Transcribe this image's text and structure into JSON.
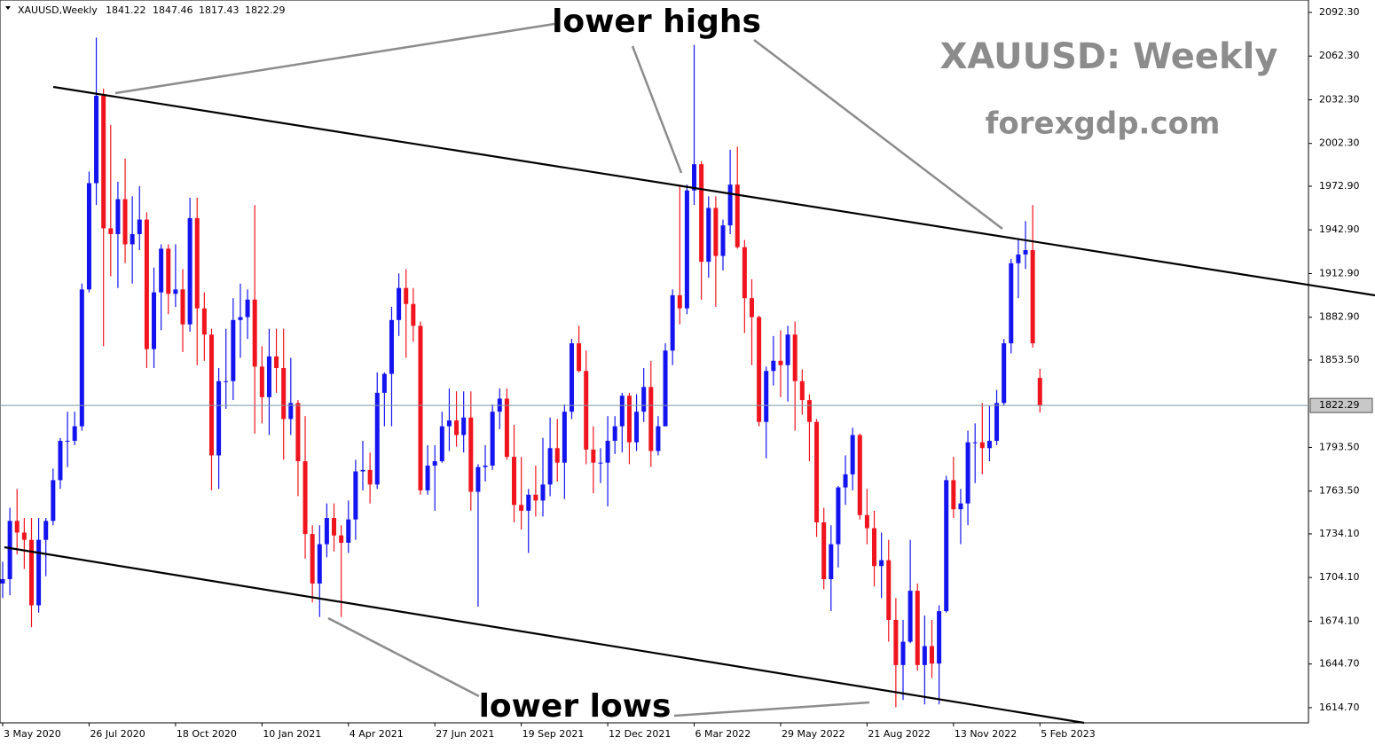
{
  "chart_data": {
    "type": "candlestick",
    "symbol_label": "XAUUSD,Weekly",
    "watermark": "XAUUSD: Weekly",
    "source": "forexgdp.com",
    "annotations": [
      "lower highs",
      "lower lows"
    ],
    "up_color": "#1414f0",
    "down_color": "#f0141e",
    "categories": [
      "3 May 2020",
      null,
      null,
      null,
      null,
      null,
      null,
      null,
      null,
      null,
      null,
      null,
      "26 Jul 2020",
      null,
      null,
      null,
      null,
      null,
      null,
      null,
      null,
      null,
      null,
      null,
      "18 Oct 2020",
      null,
      null,
      null,
      null,
      null,
      null,
      null,
      null,
      null,
      null,
      null,
      "10 Jan 2021",
      null,
      null,
      null,
      null,
      null,
      null,
      null,
      null,
      null,
      null,
      null,
      "4 Apr 2021",
      null,
      null,
      null,
      null,
      null,
      null,
      null,
      null,
      null,
      null,
      null,
      "27 Jun 2021",
      null,
      null,
      null,
      null,
      null,
      null,
      null,
      null,
      null,
      null,
      null,
      "19 Sep 2021",
      null,
      null,
      null,
      null,
      null,
      null,
      null,
      null,
      null,
      null,
      null,
      "12 Dec 2021",
      null,
      null,
      null,
      null,
      null,
      null,
      null,
      null,
      null,
      null,
      null,
      "6 Mar 2022",
      null,
      null,
      null,
      null,
      null,
      null,
      null,
      null,
      null,
      null,
      null,
      "29 May 2022",
      null,
      null,
      null,
      null,
      null,
      null,
      null,
      null,
      null,
      null,
      null,
      "21 Aug 2022",
      null,
      null,
      null,
      null,
      null,
      null,
      null,
      null,
      null,
      null,
      null,
      "13 Nov 2022",
      null,
      null,
      null,
      null,
      null,
      null,
      null,
      null,
      null,
      null,
      null,
      "5 Feb 2023"
    ],
    "open": [
      1700,
      1703,
      1743,
      1735,
      1730,
      1685,
      1730,
      1743,
      1771,
      1798,
      1798,
      1808,
      1902,
      1975,
      2035,
      1944,
      1940,
      1964,
      1933,
      1940,
      1950,
      1861,
      1900,
      1930,
      1899,
      1902,
      1878,
      1951,
      1889,
      1871,
      1788,
      1839,
      1839,
      1881,
      1883,
      1895,
      1849,
      1828,
      1856,
      1848,
      1813,
      1824,
      1784,
      1734,
      1700,
      1727,
      1745,
      1733,
      1728,
      1744,
      1777,
      1778,
      1768,
      1831,
      1844,
      1881,
      1903,
      1892,
      1877,
      1764,
      1781,
      1784,
      1808,
      1812,
      1802,
      1814,
      1763,
      1780,
      1781,
      1818,
      1827,
      1787,
      1754,
      1750,
      1761,
      1757,
      1768,
      1793,
      1783,
      1818,
      1865,
      1846,
      1792,
      1783,
      1783,
      1798,
      1808,
      1829,
      1797,
      1818,
      1835,
      1791,
      1808,
      1860,
      1898,
      1889,
      1970,
      1988,
      1921,
      1958,
      1925,
      1946,
      1974,
      1931,
      1896,
      1883,
      1811,
      1846,
      1853,
      1850,
      1871,
      1839,
      1826,
      1811,
      1742,
      1703,
      1727,
      1766,
      1775,
      1802,
      1747,
      1738,
      1712,
      1716,
      1675,
      1644,
      1660,
      1695,
      1644,
      1657,
      1645,
      1681,
      1771,
      1751,
      1755,
      1797,
      1797,
      1793,
      1798,
      1824,
      1865,
      1920,
      1926,
      1929,
      1841.22
    ],
    "high": [
      1715,
      1752,
      1765,
      1745,
      1745,
      1745,
      1745,
      1779,
      1800,
      1818,
      1818,
      1906,
      1983,
      2075,
      2040,
      2015,
      1976,
      1992,
      1966,
      1973,
      1955,
      1917,
      1933,
      1933,
      1933,
      1916,
      1965,
      1965,
      1900,
      1875,
      1848,
      1875,
      1896,
      1906,
      1902,
      1960,
      1863,
      1875,
      1875,
      1875,
      1855,
      1826,
      1815,
      1740,
      1740,
      1755,
      1755,
      1740,
      1757,
      1785,
      1798,
      1790,
      1845,
      1845,
      1890,
      1913,
      1916,
      1903,
      1880,
      1795,
      1795,
      1818,
      1834,
      1832,
      1832,
      1832,
      1782,
      1795,
      1823,
      1834,
      1834,
      1809,
      1787,
      1765,
      1781,
      1800,
      1814,
      1813,
      1823,
      1868,
      1877,
      1860,
      1808,
      1793,
      1815,
      1815,
      1831,
      1831,
      1830,
      1848,
      1853,
      1815,
      1865,
      1902,
      1974,
      1974,
      2070,
      1990,
      1966,
      1966,
      1950,
      1998,
      2000,
      1936,
      1909,
      1884,
      1849,
      1870,
      1874,
      1877,
      1880,
      1847,
      1830,
      1813,
      1752,
      1740,
      1767,
      1788,
      1807,
      1803,
      1765,
      1750,
      1735,
      1730,
      1690,
      1675,
      1730,
      1700,
      1678,
      1675,
      1685,
      1774,
      1787,
      1765,
      1805,
      1810,
      1824,
      1822,
      1833,
      1868,
      1923,
      1937,
      1949,
      1960,
      1847.46
    ],
    "low": [
      1690,
      1692,
      1720,
      1710,
      1670,
      1680,
      1705,
      1740,
      1765,
      1780,
      1795,
      1805,
      1900,
      1960,
      1863,
      1911,
      1903,
      1920,
      1906,
      1929,
      1848,
      1848,
      1874,
      1885,
      1890,
      1859,
      1873,
      1850,
      1853,
      1764,
      1765,
      1820,
      1826,
      1855,
      1868,
      1803,
      1810,
      1802,
      1831,
      1785,
      1802,
      1760,
      1717,
      1687,
      1677,
      1718,
      1722,
      1677,
      1721,
      1730,
      1764,
      1755,
      1765,
      1808,
      1808,
      1870,
      1855,
      1866,
      1761,
      1761,
      1750,
      1783,
      1791,
      1794,
      1790,
      1750,
      1684,
      1770,
      1778,
      1806,
      1785,
      1742,
      1737,
      1721,
      1746,
      1746,
      1760,
      1770,
      1758,
      1813,
      1845,
      1782,
      1762,
      1769,
      1753,
      1789,
      1790,
      1782,
      1791,
      1811,
      1780,
      1788,
      1808,
      1850,
      1878,
      1885,
      1960,
      1895,
      1910,
      1890,
      1915,
      1940,
      1930,
      1872,
      1850,
      1808,
      1786,
      1836,
      1828,
      1825,
      1805,
      1816,
      1784,
      1732,
      1696,
      1681,
      1711,
      1754,
      1764,
      1744,
      1727,
      1698,
      1690,
      1660,
      1615,
      1620,
      1659,
      1640,
      1617,
      1635,
      1617,
      1680,
      1745,
      1727,
      1740,
      1769,
      1775,
      1784,
      1795,
      1822,
      1858,
      1896,
      1916,
      1862,
      1817.43
    ],
    "close": [
      1703,
      1743,
      1735,
      1730,
      1685,
      1730,
      1743,
      1771,
      1798,
      1798,
      1808,
      1902,
      1975,
      2035,
      1944,
      1940,
      1964,
      1933,
      1940,
      1950,
      1861,
      1900,
      1930,
      1899,
      1902,
      1878,
      1951,
      1889,
      1871,
      1788,
      1839,
      1839,
      1881,
      1883,
      1895,
      1849,
      1828,
      1856,
      1848,
      1813,
      1824,
      1784,
      1734,
      1700,
      1727,
      1745,
      1733,
      1728,
      1744,
      1777,
      1778,
      1768,
      1831,
      1844,
      1881,
      1903,
      1892,
      1877,
      1764,
      1781,
      1784,
      1808,
      1812,
      1802,
      1814,
      1763,
      1780,
      1781,
      1818,
      1827,
      1787,
      1754,
      1750,
      1761,
      1757,
      1768,
      1793,
      1783,
      1818,
      1865,
      1846,
      1792,
      1783,
      1783,
      1798,
      1808,
      1829,
      1797,
      1818,
      1835,
      1791,
      1808,
      1860,
      1898,
      1889,
      1970,
      1988,
      1921,
      1958,
      1925,
      1946,
      1974,
      1931,
      1896,
      1883,
      1811,
      1846,
      1853,
      1850,
      1871,
      1839,
      1826,
      1811,
      1742,
      1703,
      1727,
      1766,
      1775,
      1802,
      1747,
      1738,
      1712,
      1716,
      1675,
      1644,
      1660,
      1695,
      1644,
      1657,
      1645,
      1681,
      1771,
      1751,
      1755,
      1797,
      1797,
      1793,
      1798,
      1824,
      1865,
      1920,
      1926,
      1929,
      1865,
      1822.29
    ],
    "ylim": [
      1604.3,
      2099.6
    ],
    "yticks": [
      {
        "value": 2092.3,
        "label": "2092.30"
      },
      {
        "value": 2062.3,
        "label": "2062.30"
      },
      {
        "value": 2032.3,
        "label": "2032.30"
      },
      {
        "value": 2002.3,
        "label": "2002.30"
      },
      {
        "value": 1972.9,
        "label": "1972.90"
      },
      {
        "value": 1942.9,
        "label": "1942.90"
      },
      {
        "value": 1912.9,
        "label": "1912.90"
      },
      {
        "value": 1882.9,
        "label": "1882.90"
      },
      {
        "value": 1853.5,
        "label": "1853.50"
      },
      {
        "value": 1793.5,
        "label": "1793.50"
      },
      {
        "value": 1763.5,
        "label": "1763.50"
      },
      {
        "value": 1734.1,
        "label": "1734.10"
      },
      {
        "value": 1704.1,
        "label": "1704.10"
      },
      {
        "value": 1674.1,
        "label": "1674.10"
      },
      {
        "value": 1644.7,
        "label": "1644.70"
      },
      {
        "value": 1614.7,
        "label": "1614.70"
      }
    ]
  }
}
